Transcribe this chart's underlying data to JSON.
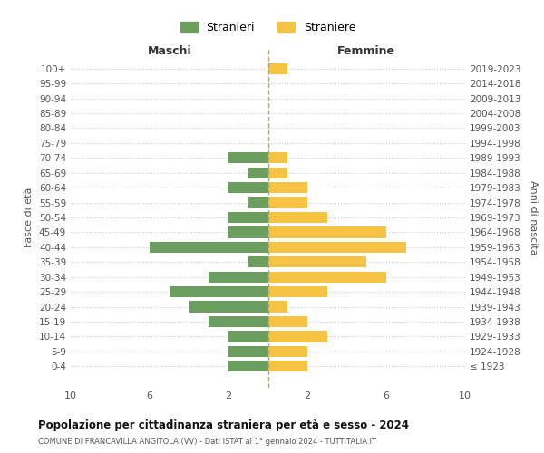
{
  "age_groups": [
    "100+",
    "95-99",
    "90-94",
    "85-89",
    "80-84",
    "75-79",
    "70-74",
    "65-69",
    "60-64",
    "55-59",
    "50-54",
    "45-49",
    "40-44",
    "35-39",
    "30-34",
    "25-29",
    "20-24",
    "15-19",
    "10-14",
    "5-9",
    "0-4"
  ],
  "birth_years": [
    "≤ 1923",
    "1924-1928",
    "1929-1933",
    "1934-1938",
    "1939-1943",
    "1944-1948",
    "1949-1953",
    "1954-1958",
    "1959-1963",
    "1964-1968",
    "1969-1973",
    "1974-1978",
    "1979-1983",
    "1984-1988",
    "1989-1993",
    "1994-1998",
    "1999-2003",
    "2004-2008",
    "2009-2013",
    "2014-2018",
    "2019-2023"
  ],
  "maschi": [
    0,
    0,
    0,
    0,
    0,
    0,
    2,
    1,
    2,
    1,
    2,
    2,
    6,
    1,
    3,
    5,
    4,
    3,
    2,
    2,
    2
  ],
  "femmine": [
    1,
    0,
    0,
    0,
    0,
    0,
    1,
    1,
    2,
    2,
    3,
    6,
    7,
    5,
    6,
    3,
    1,
    2,
    3,
    2,
    2
  ],
  "color_maschi": "#6b9e5e",
  "color_femmine": "#f5c242",
  "title": "Popolazione per cittadinanza straniera per età e sesso - 2024",
  "subtitle": "COMUNE DI FRANCAVILLA ANGITOLA (VV) - Dati ISTAT al 1° gennaio 2024 - TUTTITALIA.IT",
  "label_maschi": "Stranieri",
  "label_femmine": "Straniere",
  "xlim": 10,
  "xlabel_left": "Maschi",
  "xlabel_right": "Femmine",
  "ylabel_left": "Fasce di età",
  "ylabel_right": "Anni di nascita",
  "background_color": "#ffffff",
  "grid_color": "#cccccc"
}
